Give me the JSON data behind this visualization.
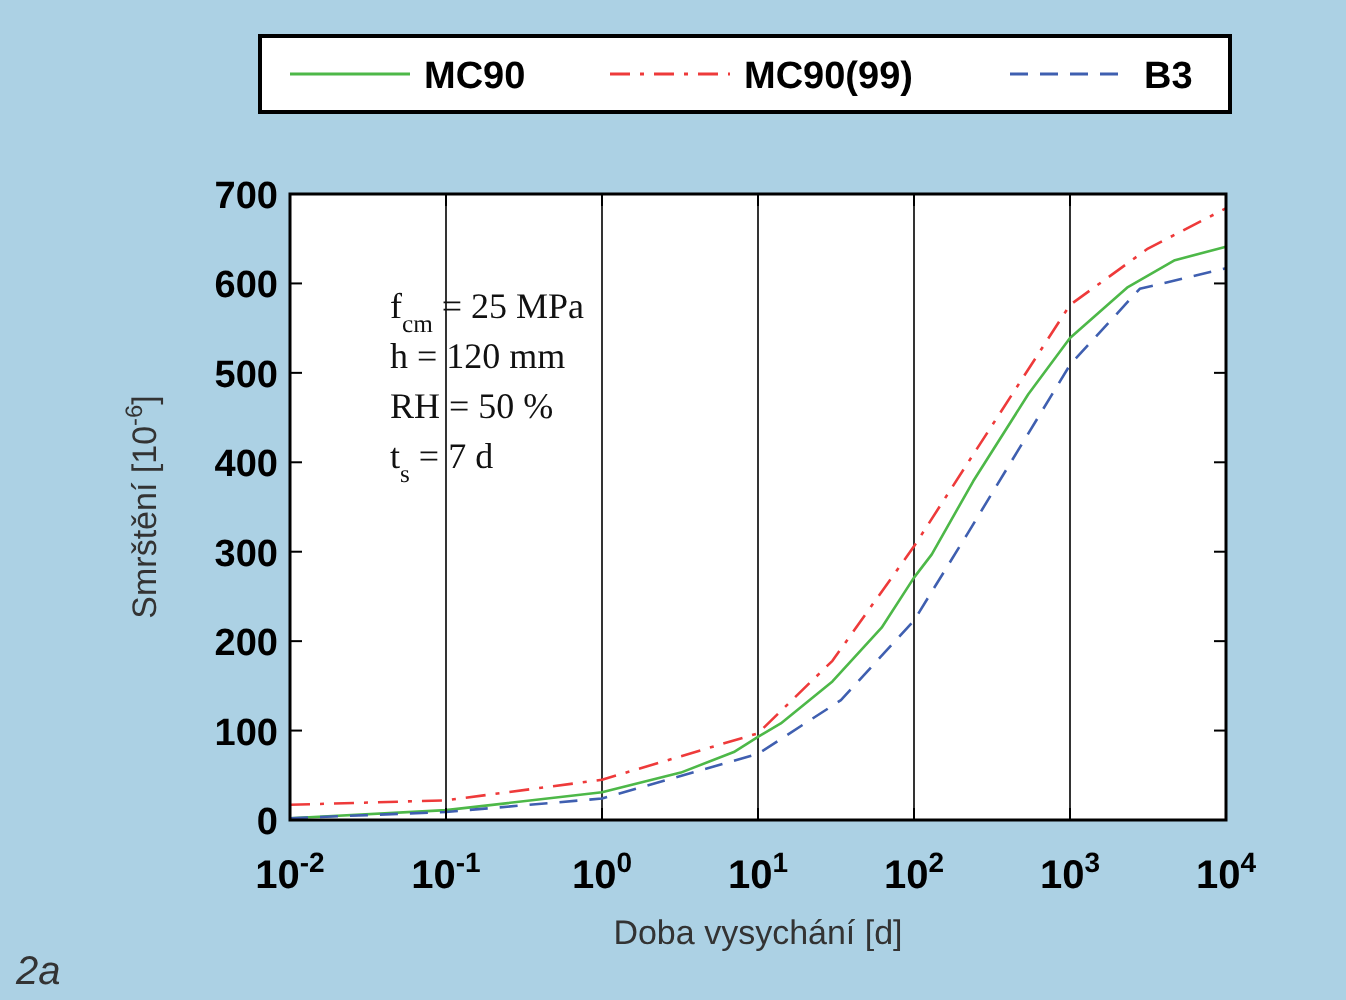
{
  "chart_data": {
    "type": "line",
    "xlabel": "Doba vysychání [d]",
    "ylabel": "Smrštění [10$^{-6}$]",
    "log": "x",
    "grid": "x",
    "legend": "top",
    "marker": "none",
    "xlim": [
      0.01,
      10000
    ],
    "xticks": [
      {
        "value": 0.01,
        "label": "10$^{-2}$"
      },
      {
        "value": 0.1,
        "label": "10$^{-1}$"
      },
      {
        "value": 1,
        "label": "10$^{0}$"
      },
      {
        "value": 10,
        "label": "10$^{1}$"
      },
      {
        "value": 100,
        "label": "10$^{2}$"
      },
      {
        "value": 1000,
        "label": "10$^{3}$"
      },
      {
        "value": 10000,
        "label": "10$^{4}$"
      }
    ],
    "ylim": [
      0,
      700
    ],
    "yticks": [
      0,
      100,
      200,
      300,
      400,
      500,
      600,
      700
    ],
    "annotations": [
      "f$_{cm}$ = 25 MPa",
      "h = 120 mm",
      "RH = 50 %",
      "t$_{s}$ = 7 d",
      "2a"
    ],
    "series": [
      {
        "name": "MC90",
        "color": "#4db848",
        "line_style": "solid",
        "x": [
          0.01,
          0.1,
          1,
          3.2,
          7,
          10,
          14,
          30,
          62,
          100,
          130,
          240,
          540,
          1000,
          2350,
          4700,
          10000
        ],
        "values": [
          2,
          11,
          31,
          53,
          76,
          93,
          108,
          155,
          215,
          271,
          297,
          379,
          476,
          539,
          596,
          626,
          641
        ]
      },
      {
        "name": "MC90(99)",
        "color": "#ee3a3a",
        "line_style": "dashdot",
        "x": [
          0.01,
          0.1,
          1,
          10,
          30,
          100,
          300,
          1000,
          3160,
          10000
        ],
        "values": [
          17,
          22,
          45,
          97,
          178,
          306,
          435,
          576,
          639,
          684
        ]
      },
      {
        "name": "B3",
        "color": "#3f5fb0",
        "line_style": "dashed",
        "x": [
          0.01,
          0.1,
          1,
          10,
          34,
          100,
          220,
          1000,
          2800,
          10000
        ],
        "values": [
          2,
          9,
          24,
          74,
          134,
          223,
          320,
          509,
          594,
          617
        ]
      }
    ]
  }
}
